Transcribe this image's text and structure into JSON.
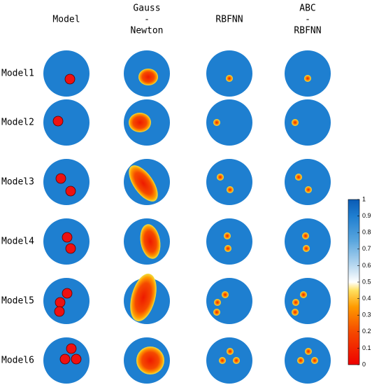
{
  "figure": {
    "headers": [
      [
        "Model"
      ],
      [
        "Gauss",
        "-",
        "Newton"
      ],
      [
        "RBFNN"
      ],
      [
        "ABC",
        "-",
        "RBFNN"
      ]
    ],
    "rows": [
      "Model1",
      "Model2",
      "Model3",
      "Model4",
      "Model5",
      "Model6"
    ],
    "colorbar": {
      "ticks": [
        0,
        0.1,
        0.2,
        0.3,
        0.4,
        0.5,
        0.6,
        0.7,
        0.8,
        0.9,
        1
      ]
    }
  }
}
